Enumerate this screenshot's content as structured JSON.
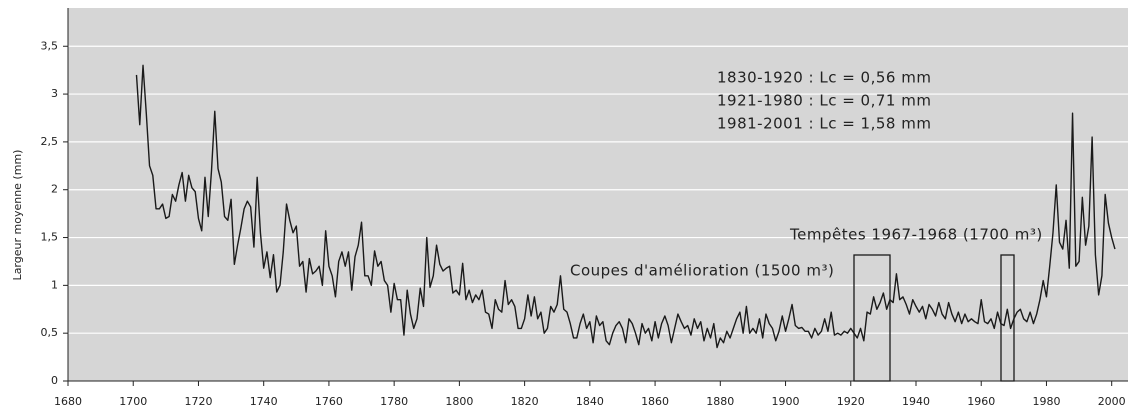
{
  "chart_data": {
    "type": "line",
    "y_label": "Largeur moyenne (mm)",
    "color": "#1a1a1a",
    "background": "#d6d6d6",
    "grid": true,
    "annotations": [
      "1830-1920 : Lc = 0,56 mm",
      "1921-1980 : Lc = 0,71 mm",
      "1981-2001 : Lc = 1,58 mm",
      "Tempêtes 1967-1968 (1700 m³)",
      "Coupes d'amélioration (1500 m³)"
    ],
    "xlim": [
      1680,
      2005
    ],
    "xticks": [
      1680,
      1700,
      1720,
      1740,
      1760,
      1780,
      1800,
      1820,
      1840,
      1860,
      1880,
      1900,
      1920,
      1940,
      1960,
      1980,
      2000
    ],
    "ylim": [
      0,
      3.9
    ],
    "yticks": [
      0,
      {
        "value": 0.5,
        "label": "0,5"
      },
      1,
      {
        "value": 1.5,
        "label": "1,5"
      },
      2,
      {
        "value": 2.5,
        "label": "2,5"
      },
      3,
      {
        "value": 3.5,
        "label": "3,5"
      }
    ],
    "x": [
      1701,
      1702,
      1703,
      1704,
      1705,
      1706,
      1707,
      1708,
      1709,
      1710,
      1711,
      1712,
      1713,
      1714,
      1715,
      1716,
      1717,
      1718,
      1719,
      1720,
      1721,
      1722,
      1723,
      1724,
      1725,
      1726,
      1727,
      1728,
      1729,
      1730,
      1731,
      1732,
      1733,
      1734,
      1735,
      1736,
      1737,
      1738,
      1739,
      1740,
      1741,
      1742,
      1743,
      1744,
      1745,
      1746,
      1747,
      1748,
      1749,
      1750,
      1751,
      1752,
      1753,
      1754,
      1755,
      1756,
      1757,
      1758,
      1759,
      1760,
      1761,
      1762,
      1763,
      1764,
      1765,
      1766,
      1767,
      1768,
      1769,
      1770,
      1771,
      1772,
      1773,
      1774,
      1775,
      1776,
      1777,
      1778,
      1779,
      1780,
      1781,
      1782,
      1783,
      1784,
      1785,
      1786,
      1787,
      1788,
      1789,
      1790,
      1791,
      1792,
      1793,
      1794,
      1795,
      1796,
      1797,
      1798,
      1799,
      1800,
      1801,
      1802,
      1803,
      1804,
      1805,
      1806,
      1807,
      1808,
      1809,
      1810,
      1811,
      1812,
      1813,
      1814,
      1815,
      1816,
      1817,
      1818,
      1819,
      1820,
      1821,
      1822,
      1823,
      1824,
      1825,
      1826,
      1827,
      1828,
      1829,
      1830,
      1831,
      1832,
      1833,
      1834,
      1835,
      1836,
      1837,
      1838,
      1839,
      1840,
      1841,
      1842,
      1843,
      1844,
      1845,
      1846,
      1847,
      1848,
      1849,
      1850,
      1851,
      1852,
      1853,
      1854,
      1855,
      1856,
      1857,
      1858,
      1859,
      1860,
      1861,
      1862,
      1863,
      1864,
      1865,
      1866,
      1867,
      1868,
      1869,
      1870,
      1871,
      1872,
      1873,
      1874,
      1875,
      1876,
      1877,
      1878,
      1879,
      1880,
      1881,
      1882,
      1883,
      1884,
      1885,
      1886,
      1887,
      1888,
      1889,
      1890,
      1891,
      1892,
      1893,
      1894,
      1895,
      1896,
      1897,
      1898,
      1899,
      1900,
      1901,
      1902,
      1903,
      1904,
      1905,
      1906,
      1907,
      1908,
      1909,
      1910,
      1911,
      1912,
      1913,
      1914,
      1915,
      1916,
      1917,
      1918,
      1919,
      1920,
      1921,
      1922,
      1923,
      1924,
      1925,
      1926,
      1927,
      1928,
      1929,
      1930,
      1931,
      1932,
      1933,
      1934,
      1935,
      1936,
      1937,
      1938,
      1939,
      1940,
      1941,
      1942,
      1943,
      1944,
      1945,
      1946,
      1947,
      1948,
      1949,
      1950,
      1951,
      1952,
      1953,
      1954,
      1955,
      1956,
      1957,
      1958,
      1959,
      1960,
      1961,
      1962,
      1963,
      1964,
      1965,
      1966,
      1967,
      1968,
      1969,
      1970,
      1971,
      1972,
      1973,
      1974,
      1975,
      1976,
      1977,
      1978,
      1979,
      1980,
      1981,
      1982,
      1983,
      1984,
      1985,
      1986,
      1987,
      1988,
      1989,
      1990,
      1991,
      1992,
      1993,
      1994,
      1995,
      1996,
      1997,
      1998,
      1999,
      2000,
      2001
    ],
    "values": [
      3.2,
      2.68,
      3.3,
      2.8,
      2.25,
      2.15,
      1.8,
      1.8,
      1.85,
      1.7,
      1.72,
      1.95,
      1.88,
      2.05,
      2.18,
      1.88,
      2.15,
      2.02,
      1.98,
      1.7,
      1.57,
      2.13,
      1.72,
      2.2,
      2.82,
      2.22,
      2.08,
      1.72,
      1.68,
      1.9,
      1.22,
      1.42,
      1.6,
      1.8,
      1.88,
      1.82,
      1.4,
      2.13,
      1.55,
      1.18,
      1.35,
      1.08,
      1.32,
      0.93,
      1.0,
      1.35,
      1.85,
      1.68,
      1.55,
      1.62,
      1.2,
      1.25,
      0.93,
      1.28,
      1.12,
      1.15,
      1.2,
      1.0,
      1.57,
      1.2,
      1.1,
      0.88,
      1.25,
      1.35,
      1.2,
      1.35,
      0.95,
      1.3,
      1.42,
      1.66,
      1.1,
      1.1,
      1.0,
      1.36,
      1.2,
      1.25,
      1.05,
      1.0,
      0.72,
      1.02,
      0.85,
      0.85,
      0.48,
      0.95,
      0.7,
      0.55,
      0.65,
      0.97,
      0.78,
      1.5,
      0.98,
      1.1,
      1.42,
      1.22,
      1.15,
      1.18,
      1.2,
      0.92,
      0.95,
      0.9,
      1.23,
      0.85,
      0.95,
      0.82,
      0.9,
      0.85,
      0.95,
      0.72,
      0.7,
      0.55,
      0.85,
      0.75,
      0.72,
      1.05,
      0.8,
      0.85,
      0.78,
      0.55,
      0.55,
      0.65,
      0.9,
      0.68,
      0.88,
      0.65,
      0.72,
      0.5,
      0.55,
      0.78,
      0.72,
      0.8,
      1.1,
      0.75,
      0.72,
      0.6,
      0.45,
      0.45,
      0.6,
      0.7,
      0.55,
      0.62,
      0.4,
      0.68,
      0.58,
      0.62,
      0.42,
      0.38,
      0.5,
      0.58,
      0.62,
      0.55,
      0.4,
      0.65,
      0.6,
      0.5,
      0.38,
      0.6,
      0.5,
      0.55,
      0.42,
      0.62,
      0.45,
      0.6,
      0.68,
      0.58,
      0.4,
      0.55,
      0.7,
      0.62,
      0.55,
      0.58,
      0.48,
      0.65,
      0.55,
      0.62,
      0.42,
      0.55,
      0.45,
      0.6,
      0.35,
      0.45,
      0.4,
      0.52,
      0.45,
      0.55,
      0.65,
      0.72,
      0.5,
      0.78,
      0.5,
      0.55,
      0.5,
      0.65,
      0.45,
      0.7,
      0.6,
      0.55,
      0.42,
      0.52,
      0.68,
      0.52,
      0.65,
      0.8,
      0.58,
      0.55,
      0.56,
      0.52,
      0.52,
      0.45,
      0.55,
      0.48,
      0.52,
      0.65,
      0.52,
      0.72,
      0.48,
      0.5,
      0.48,
      0.52,
      0.5,
      0.55,
      0.5,
      0.45,
      0.55,
      0.42,
      0.72,
      0.7,
      0.88,
      0.75,
      0.82,
      0.92,
      0.75,
      0.85,
      0.82,
      1.12,
      0.85,
      0.88,
      0.8,
      0.7,
      0.85,
      0.78,
      0.72,
      0.78,
      0.65,
      0.8,
      0.75,
      0.68,
      0.82,
      0.7,
      0.65,
      0.82,
      0.7,
      0.62,
      0.72,
      0.6,
      0.7,
      0.62,
      0.65,
      0.62,
      0.6,
      0.85,
      0.62,
      0.6,
      0.65,
      0.55,
      0.72,
      0.6,
      0.58,
      0.75,
      0.55,
      0.65,
      0.72,
      0.75,
      0.65,
      0.62,
      0.72,
      0.6,
      0.7,
      0.85,
      1.05,
      0.88,
      1.2,
      1.55,
      2.05,
      1.45,
      1.38,
      1.68,
      1.18,
      2.8,
      1.2,
      1.25,
      1.92,
      1.42,
      1.62,
      2.55,
      1.32,
      0.9,
      1.1,
      1.95,
      1.65,
      1.5,
      1.38
    ]
  }
}
